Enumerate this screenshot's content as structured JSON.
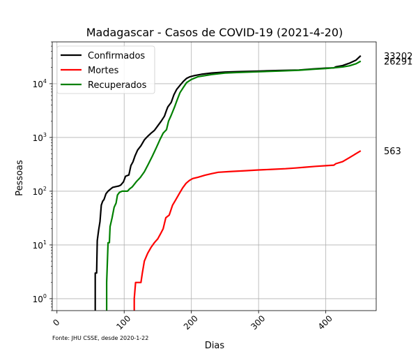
{
  "chart_data": {
    "type": "line",
    "title": "Madagascar - Casos de COVID-19 (2021-4-20)",
    "xlabel": "Dias",
    "ylabel": "Pessoas",
    "source_note": "Fonte: JHU CSSE, desde 2020-1-22",
    "yscale": "log",
    "xlim": [
      -7,
      475
    ],
    "ylim": [
      0.6,
      60000
    ],
    "grid": true,
    "legend_position": "top-left",
    "x_ticks": [
      0,
      100,
      200,
      300,
      400
    ],
    "x_tick_labels": [
      "0",
      "100",
      "200",
      "300",
      "400"
    ],
    "y_ticks": [
      1,
      10,
      100,
      1000,
      10000
    ],
    "y_tick_labels": [
      {
        "base": "10",
        "exp": "0"
      },
      {
        "base": "10",
        "exp": "1"
      },
      {
        "base": "10",
        "exp": "2"
      },
      {
        "base": "10",
        "exp": "3"
      },
      {
        "base": "10",
        "exp": "4"
      }
    ],
    "series": [
      {
        "name": "Confirmados",
        "color": "#000000",
        "final_label": "33202",
        "points": [
          [
            57,
            0.6
          ],
          [
            57,
            3
          ],
          [
            59,
            3
          ],
          [
            60,
            12
          ],
          [
            62,
            19
          ],
          [
            64,
            27
          ],
          [
            66,
            55
          ],
          [
            68,
            65
          ],
          [
            70,
            70
          ],
          [
            73,
            90
          ],
          [
            76,
            100
          ],
          [
            80,
            110
          ],
          [
            83,
            118
          ],
          [
            88,
            122
          ],
          [
            92,
            125
          ],
          [
            95,
            130
          ],
          [
            99,
            150
          ],
          [
            102,
            190
          ],
          [
            107,
            200
          ],
          [
            110,
            300
          ],
          [
            113,
            350
          ],
          [
            116,
            450
          ],
          [
            120,
            580
          ],
          [
            125,
            700
          ],
          [
            130,
            900
          ],
          [
            135,
            1050
          ],
          [
            140,
            1200
          ],
          [
            145,
            1350
          ],
          [
            150,
            1650
          ],
          [
            155,
            2000
          ],
          [
            160,
            2500
          ],
          [
            163,
            3200
          ],
          [
            165,
            3700
          ],
          [
            170,
            4500
          ],
          [
            174,
            6200
          ],
          [
            178,
            7800
          ],
          [
            183,
            9300
          ],
          [
            188,
            11000
          ],
          [
            193,
            12600
          ],
          [
            198,
            13500
          ],
          [
            205,
            14200
          ],
          [
            215,
            15000
          ],
          [
            230,
            15800
          ],
          [
            250,
            16500
          ],
          [
            270,
            16800
          ],
          [
            300,
            17200
          ],
          [
            330,
            17600
          ],
          [
            360,
            18000
          ],
          [
            380,
            18800
          ],
          [
            400,
            19500
          ],
          [
            412,
            19700
          ],
          [
            415,
            20600
          ],
          [
            425,
            21800
          ],
          [
            435,
            24000
          ],
          [
            445,
            27500
          ],
          [
            452,
            33202
          ]
        ]
      },
      {
        "name": "Mortes",
        "color": "#ff0000",
        "final_label": "563",
        "points": [
          [
            115,
            0.6
          ],
          [
            115,
            1
          ],
          [
            117,
            2
          ],
          [
            125,
            2
          ],
          [
            127,
            3
          ],
          [
            130,
            5
          ],
          [
            135,
            7
          ],
          [
            140,
            9
          ],
          [
            145,
            11
          ],
          [
            150,
            13
          ],
          [
            154,
            16
          ],
          [
            158,
            20
          ],
          [
            162,
            32
          ],
          [
            167,
            36
          ],
          [
            172,
            55
          ],
          [
            177,
            70
          ],
          [
            182,
            90
          ],
          [
            187,
            115
          ],
          [
            192,
            140
          ],
          [
            197,
            158
          ],
          [
            202,
            172
          ],
          [
            210,
            182
          ],
          [
            220,
            198
          ],
          [
            230,
            212
          ],
          [
            240,
            225
          ],
          [
            260,
            233
          ],
          [
            280,
            240
          ],
          [
            300,
            248
          ],
          [
            320,
            255
          ],
          [
            340,
            262
          ],
          [
            355,
            270
          ],
          [
            370,
            280
          ],
          [
            385,
            290
          ],
          [
            400,
            298
          ],
          [
            412,
            305
          ],
          [
            415,
            325
          ],
          [
            425,
            355
          ],
          [
            435,
            420
          ],
          [
            445,
            500
          ],
          [
            452,
            563
          ]
        ]
      },
      {
        "name": "Recuperados",
        "color": "#008000",
        "final_label": "26291",
        "points": [
          [
            74,
            0.6
          ],
          [
            74,
            2
          ],
          [
            76,
            11
          ],
          [
            78,
            11
          ],
          [
            79,
            22
          ],
          [
            82,
            32
          ],
          [
            85,
            50
          ],
          [
            88,
            60
          ],
          [
            90,
            85
          ],
          [
            93,
            95
          ],
          [
            97,
            100
          ],
          [
            101,
            100
          ],
          [
            105,
            100
          ],
          [
            108,
            110
          ],
          [
            112,
            120
          ],
          [
            118,
            150
          ],
          [
            124,
            180
          ],
          [
            130,
            230
          ],
          [
            136,
            320
          ],
          [
            142,
            450
          ],
          [
            148,
            650
          ],
          [
            153,
            900
          ],
          [
            158,
            1200
          ],
          [
            163,
            1400
          ],
          [
            166,
            2000
          ],
          [
            170,
            2600
          ],
          [
            175,
            3700
          ],
          [
            178,
            4700
          ],
          [
            183,
            6800
          ],
          [
            188,
            8500
          ],
          [
            193,
            10500
          ],
          [
            200,
            12000
          ],
          [
            210,
            13500
          ],
          [
            230,
            14800
          ],
          [
            250,
            15800
          ],
          [
            270,
            16200
          ],
          [
            300,
            16700
          ],
          [
            330,
            17200
          ],
          [
            360,
            17800
          ],
          [
            380,
            18500
          ],
          [
            400,
            19200
          ],
          [
            412,
            19700
          ],
          [
            425,
            20500
          ],
          [
            435,
            21500
          ],
          [
            445,
            23500
          ],
          [
            452,
            26291
          ]
        ]
      }
    ]
  }
}
